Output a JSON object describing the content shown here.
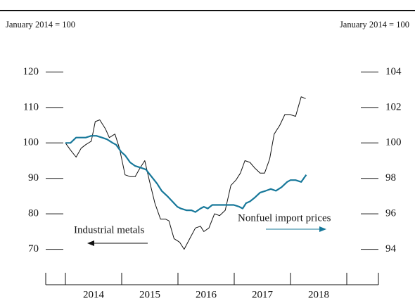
{
  "chart_data": {
    "type": "line",
    "ylabel": "January 2014 = 100",
    "y2label": "January 2014 = 100",
    "xlim": [
      2013.65,
      2019.5625
    ],
    "xticks": [
      2014,
      2015,
      2016,
      2017,
      2018,
      2019
    ],
    "year_labels": [
      "2014",
      "2015",
      "2016",
      "2017",
      "2018"
    ],
    "ylim": [
      60,
      130
    ],
    "yticks": [
      70,
      80,
      90,
      100,
      110,
      120
    ],
    "y2lim": [
      92,
      106
    ],
    "y2ticks": [
      94,
      96,
      98,
      100,
      102,
      104
    ],
    "series": [
      {
        "name": "Industrial metals",
        "color": "#111111",
        "x": [
          2014,
          2014.09,
          2014.19,
          2014.28,
          2014.36,
          2014.46,
          2014.53,
          2014.61,
          2014.71,
          2014.78,
          2014.88,
          2014.96,
          2015.06,
          2015.15,
          2015.24,
          2015.31,
          2015.41,
          2015.49,
          2015.59,
          2015.69,
          2015.78,
          2015.84,
          2015.93,
          2016.03,
          2016.11,
          2016.21,
          2016.31,
          2016.4,
          2016.46,
          2016.55,
          2016.65,
          2016.74,
          2016.84,
          2016.94,
          2017.03,
          2017.11,
          2017.19,
          2017.28,
          2017.36,
          2017.46,
          2017.54,
          2017.63,
          2017.71,
          2017.81,
          2017.9,
          2017.99,
          2018.09,
          2018.19,
          2018.27
        ],
        "values": [
          100,
          98,
          96,
          98.5,
          99.5,
          100.5,
          106,
          106.5,
          104,
          101.5,
          102.5,
          98.5,
          91,
          90.5,
          90.5,
          92.5,
          95,
          89.5,
          83,
          78.5,
          78.5,
          78,
          73,
          72,
          70,
          73,
          76,
          76.5,
          75,
          76,
          80,
          79.5,
          81,
          88,
          89.5,
          91.5,
          95,
          94.5,
          93,
          91.5,
          91.5,
          95.5,
          102.5,
          105,
          108,
          108,
          107.5,
          113,
          112.5
        ]
      },
      {
        "name": "Nonfuel import prices",
        "color": "#17789a",
        "axis": "y2",
        "x": [
          2014,
          2014.09,
          2014.19,
          2014.28,
          2014.36,
          2014.46,
          2014.55,
          2014.65,
          2014.74,
          2014.84,
          2014.9,
          2014.99,
          2015.06,
          2015.15,
          2015.24,
          2015.34,
          2015.43,
          2015.53,
          2015.63,
          2015.71,
          2015.81,
          2015.9,
          2015.99,
          2016.05,
          2016.15,
          2016.24,
          2016.31,
          2016.4,
          2016.46,
          2016.53,
          2016.61,
          2016.71,
          2016.81,
          2016.9,
          2016.99,
          2017.09,
          2017.15,
          2017.21,
          2017.28,
          2017.36,
          2017.46,
          2017.56,
          2017.65,
          2017.74,
          2017.84,
          2017.94,
          2018.0,
          2018.09,
          2018.19,
          2018.28
        ],
        "values": [
          100,
          100,
          100.3,
          100.3,
          100.3,
          100.4,
          100.4,
          100.3,
          100.2,
          100,
          99.9,
          99.5,
          99.3,
          98.9,
          98.7,
          98.6,
          98.5,
          98.1,
          97.7,
          97.3,
          97,
          96.7,
          96.4,
          96.3,
          96.2,
          96.2,
          96.1,
          96.3,
          96.4,
          96.3,
          96.5,
          96.5,
          96.5,
          96.5,
          96.5,
          96.4,
          96.3,
          96.6,
          96.7,
          96.9,
          97.2,
          97.3,
          97.4,
          97.3,
          97.5,
          97.8,
          97.9,
          97.9,
          97.8,
          98.2
        ]
      }
    ]
  }
}
